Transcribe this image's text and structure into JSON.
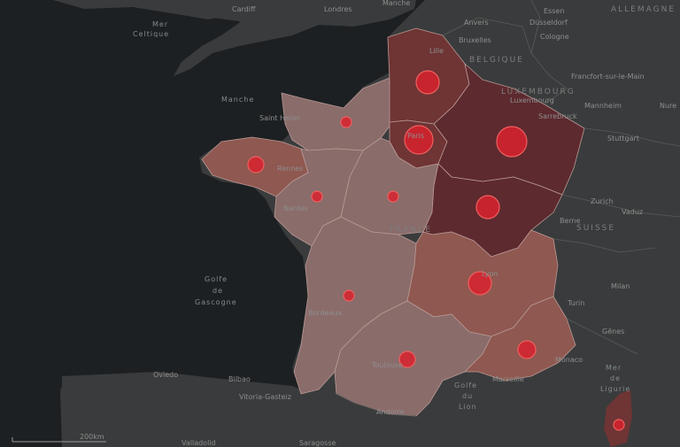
{
  "map": {
    "scale_label": "200km",
    "colors": {
      "sea": "#1d2022",
      "land": "#3a3b3c",
      "region_low": "#8a6c6a",
      "region_mid": "#8f5850",
      "region_high": "#6f3434",
      "region_top": "#5d2a2f",
      "bubble": "#d8222e",
      "bubble_stroke": "#f06060"
    },
    "labels": {
      "cardiff": "Cardiff",
      "londres": "Londres",
      "manche_top": "Manche",
      "essen": "Essen",
      "allemagne": "ALLEMAGNE",
      "anvers": "Anvers",
      "dusseldorf": "Düsseldorf",
      "bruxelles": "Bruxelles",
      "cologne": "Cologne",
      "lille": "Lille",
      "belgique": "BELGIQUE",
      "mer_celtique_1": "Mer",
      "mer_celtique_2": "Celtique",
      "francfort": "Francfort-sur-le-Main",
      "luxembourg_c": "LUXEMBOURG",
      "luxembourg": "Luxembourg",
      "manche": "Manche",
      "mannheim": "Mannheim",
      "nure": "Nure",
      "saint_helier": "Saint Helier",
      "sarrebruck": "Sarrebruck",
      "stuttgart": "Stuttgart",
      "paris": "Paris",
      "rennes": "Rennes",
      "nantes": "Nantes",
      "france": "FRANCE",
      "zurich": "Zurich",
      "vaduz": "Vaduz",
      "berne": "Berne",
      "suisse": "SUISSE",
      "lyon": "Lyon",
      "golfe_gascogne_1": "Golfe",
      "golfe_gascogne_2": "de",
      "golfe_gascogne_3": "Gascogne",
      "milan": "Milan",
      "turin": "Turin",
      "bordeaux": "Bordeaux",
      "genes": "Gênes",
      "monaco": "Monaco",
      "mer_ligurie_1": "Mer",
      "mer_ligurie_2": "de",
      "mer_ligurie_3": "Ligurie",
      "oviedo": "Oviedo",
      "bilbao": "Bilbao",
      "toulouse": "Toulouse",
      "marseille": "Marseille",
      "golfe_lion_1": "Golfe",
      "golfe_lion_2": "du",
      "golfe_lion_3": "Lion",
      "vitoria": "Vitoria-Gasteiz",
      "andorre": "Andorre",
      "valladolid": "Valladolid",
      "saragosse": "Saragosse"
    }
  }
}
